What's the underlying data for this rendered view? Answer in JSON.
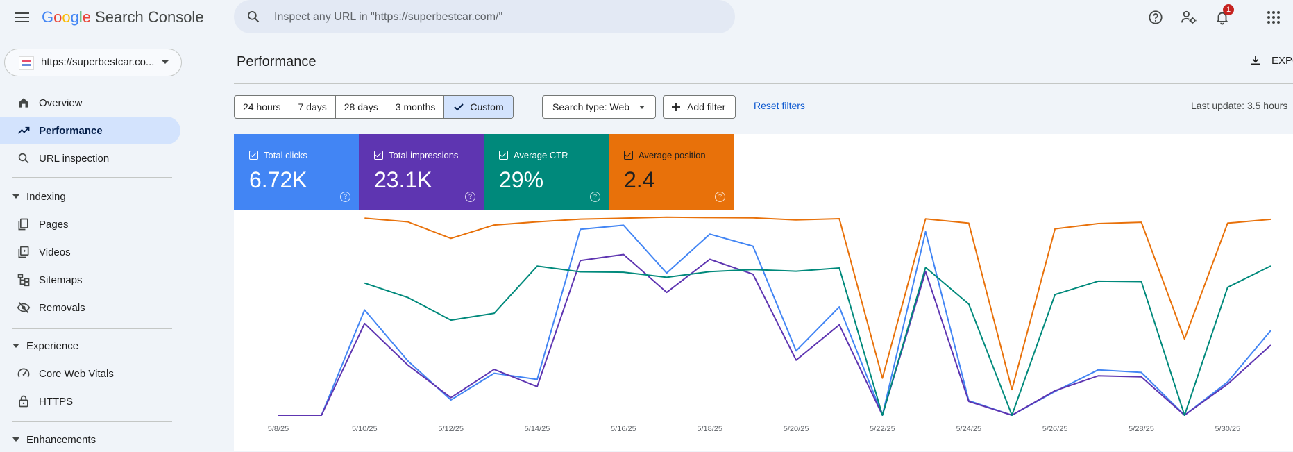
{
  "app": {
    "logo_letters": [
      "G",
      "o",
      "o",
      "g",
      "l",
      "e"
    ],
    "product": "Search Console",
    "search_placeholder": "Inspect any URL in \"https://superbestcar.com/\"",
    "notifications_count": "1"
  },
  "property": {
    "label": "https://superbestcar.co..."
  },
  "sidebar": {
    "items": [
      {
        "label": "Overview",
        "icon": "home-icon"
      },
      {
        "label": "Performance",
        "icon": "trending-icon",
        "active": true
      },
      {
        "label": "URL inspection",
        "icon": "search-icon"
      }
    ],
    "sections": [
      {
        "label": "Indexing",
        "items": [
          {
            "label": "Pages",
            "icon": "pages-icon"
          },
          {
            "label": "Videos",
            "icon": "videos-icon"
          },
          {
            "label": "Sitemaps",
            "icon": "sitemap-icon"
          },
          {
            "label": "Removals",
            "icon": "visibility-off-icon"
          }
        ]
      },
      {
        "label": "Experience",
        "items": [
          {
            "label": "Core Web Vitals",
            "icon": "speed-icon"
          },
          {
            "label": "HTTPS",
            "icon": "lock-icon"
          }
        ]
      },
      {
        "label": "Enhancements",
        "items": []
      }
    ]
  },
  "main": {
    "title": "Performance",
    "export_label": "EXPO",
    "date_ranges": [
      "24 hours",
      "7 days",
      "28 days",
      "3 months",
      "Custom"
    ],
    "selected_range": "Custom",
    "search_type": "Search type: Web",
    "add_filter": "Add filter",
    "reset_filters": "Reset filters",
    "last_update": "Last update: 3.5 hours"
  },
  "metrics": [
    {
      "label": "Total clicks",
      "value": "6.72K",
      "color": "#4285f4"
    },
    {
      "label": "Total impressions",
      "value": "23.1K",
      "color": "#5e35b1"
    },
    {
      "label": "Average CTR",
      "value": "29%",
      "color": "#00897b"
    },
    {
      "label": "Average position",
      "value": "2.4",
      "color": "#e8710a"
    }
  ],
  "chart_data": {
    "type": "line",
    "x": [
      "5/8/25",
      "5/9/25",
      "5/10/25",
      "5/11/25",
      "5/12/25",
      "5/13/25",
      "5/14/25",
      "5/15/25",
      "5/16/25",
      "5/17/25",
      "5/18/25",
      "5/19/25",
      "5/20/25",
      "5/21/25",
      "5/22/25",
      "5/23/25",
      "5/24/25",
      "5/25/25",
      "5/26/25",
      "5/27/25",
      "5/28/25",
      "5/29/25",
      "5/30/25",
      "5/31/25"
    ],
    "x_tick_labels": [
      "5/8/25",
      "5/10/25",
      "5/12/25",
      "5/14/25",
      "5/16/25",
      "5/18/25",
      "5/20/25",
      "5/22/25",
      "5/24/25",
      "5/26/25",
      "5/28/25",
      "5/30/25"
    ],
    "series": [
      {
        "name": "Total clicks",
        "color": "#4285f4",
        "values": [
          0,
          0,
          0.497,
          0.257,
          0.072,
          0.198,
          0.169,
          0.878,
          0.897,
          0.671,
          0.855,
          0.798,
          0.304,
          0.511,
          0,
          0.867,
          0.069,
          0,
          0.112,
          0.214,
          0.202,
          0,
          0.157,
          0.4
        ]
      },
      {
        "name": "Total impressions",
        "color": "#5e35b1",
        "values": [
          0,
          0,
          0.433,
          0.237,
          0.083,
          0.216,
          0.135,
          0.73,
          0.759,
          0.58,
          0.736,
          0.666,
          0.26,
          0.427,
          0,
          0.678,
          0.065,
          0,
          0.116,
          0.186,
          0.181,
          0,
          0.147,
          0.331
        ]
      },
      {
        "name": "Average CTR",
        "color": "#00897b",
        "values": [
          null,
          null,
          0.624,
          0.556,
          0.449,
          0.481,
          0.704,
          0.677,
          0.675,
          0.651,
          0.678,
          0.688,
          0.68,
          0.695,
          0,
          0.698,
          0.525,
          0,
          0.57,
          0.633,
          0.631,
          0,
          0.604,
          0.705
        ]
      },
      {
        "name": "Average position",
        "color": "#e8710a",
        "values": [
          null,
          null,
          0.93,
          0.913,
          0.835,
          0.898,
          0.913,
          0.926,
          0.93,
          0.935,
          0.933,
          0.932,
          0.922,
          0.928,
          0.175,
          0.927,
          0.907,
          0.121,
          0.88,
          0.905,
          0.911,
          0.36,
          0.907,
          0.925
        ]
      }
    ],
    "note_scale": "each series normalized to its own axis (0 = bottom, 1 = top)"
  }
}
